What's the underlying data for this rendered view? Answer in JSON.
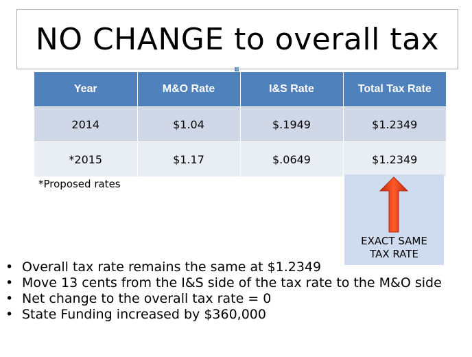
{
  "slide": {
    "title": "NO CHANGE to overall tax"
  },
  "table": {
    "headers": [
      "Year",
      "M&O Rate",
      "I&S Rate",
      "Total Tax Rate"
    ],
    "rows": [
      [
        "2014",
        "$1.04",
        "$.1949",
        "$1.2349"
      ],
      [
        "*2015",
        "$1.17",
        "$.0649",
        "$1.2349"
      ]
    ],
    "header_color": "#4f81bd",
    "row_colors": [
      "#d0d8e8",
      "#e9edf4"
    ]
  },
  "footnote": "*Proposed rates",
  "callout": {
    "line1": "EXACT SAME",
    "line2": "TAX RATE",
    "arrow_color": "#e8401c",
    "background": "#cfdcf0"
  },
  "bullets": [
    "Overall tax rate remains the same at $1.2349",
    "Move 13 cents from the I&S side of the tax rate to the M&O side",
    "Net change to the overall tax rate = 0",
    "State Funding increased by $360,000"
  ]
}
